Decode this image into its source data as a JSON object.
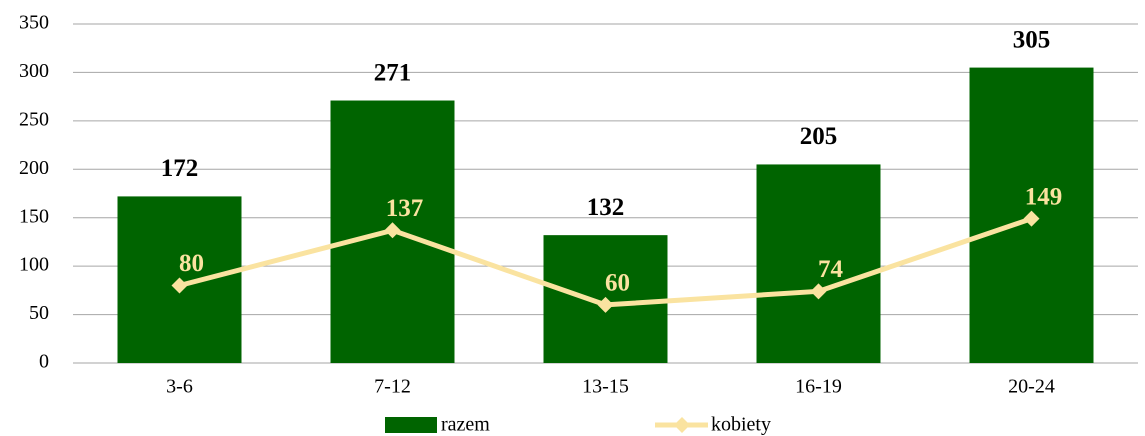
{
  "chart_data": {
    "type": "bar",
    "categories": [
      "3-6",
      "7-12",
      "13-15",
      "16-19",
      "20-24"
    ],
    "series": [
      {
        "name": "razem",
        "type": "bar",
        "color": "#006400",
        "values": [
          172,
          271,
          132,
          205,
          305
        ]
      },
      {
        "name": "kobiety",
        "type": "line",
        "color": "#fae3a0",
        "values": [
          80,
          137,
          60,
          74,
          149
        ]
      }
    ],
    "ylim": [
      0,
      350
    ],
    "yticks": [
      0,
      50,
      100,
      150,
      200,
      250,
      300,
      350
    ],
    "grid": true,
    "legend": "bottom"
  }
}
